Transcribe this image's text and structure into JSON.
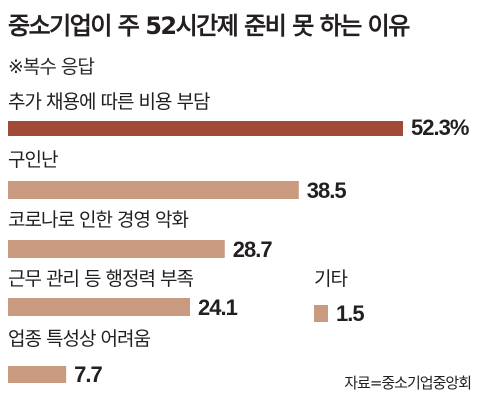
{
  "title": "중소기업이 주 52시간제 준비 못 하는 이유",
  "subtitle": "※복수 응답",
  "source": "자료=중소기업중앙회",
  "colors": {
    "highlight": "#a04a37",
    "bar": "#c99a80",
    "text": "#231f20"
  },
  "chart_data": {
    "type": "bar",
    "orientation": "horizontal",
    "title": "중소기업이 주 52시간제 준비 못 하는 이유",
    "subtitle": "※복수 응답",
    "categories": [
      "추가 채용에 따른 비용 부담",
      "구인난",
      "코로나로 인한 경영 악화",
      "근무 관리 등 행정력 부족",
      "업종 특성상 어려움",
      "기타"
    ],
    "values": [
      52.3,
      38.5,
      28.7,
      24.1,
      7.7,
      1.5
    ],
    "value_labels": [
      "52.3%",
      "38.5",
      "28.7",
      "24.1",
      "7.7",
      "1.5"
    ],
    "unit": "%",
    "grid": false,
    "legend": "none"
  }
}
